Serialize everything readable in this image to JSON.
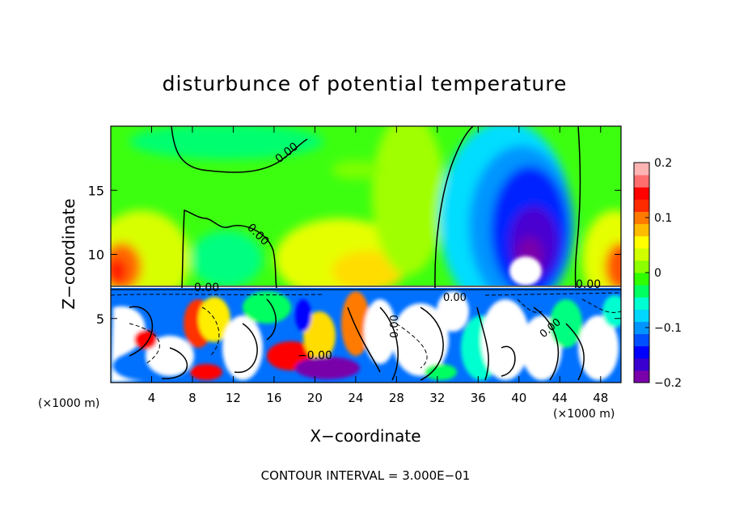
{
  "chart_data": {
    "type": "heatmap",
    "title": "disturbunce of potential temperature",
    "xlabel": "X−coordinate",
    "ylabel": "Z−coordinate",
    "x_unit_left": "(×1000 m)",
    "x_unit_right": "(×1000 m)",
    "xlim": [
      0,
      50
    ],
    "ylim": [
      0,
      20
    ],
    "x_ticks": [
      4,
      8,
      12,
      16,
      20,
      24,
      28,
      32,
      36,
      40,
      44,
      48
    ],
    "y_ticks": [
      5,
      10,
      15
    ],
    "footer": "CONTOUR INTERVAL = 3.000E−01",
    "contour_labels": [
      {
        "text": "0.00",
        "x": 17.5,
        "y": 18.0
      },
      {
        "text": "0.00",
        "x": 14.2,
        "y": 11.5
      },
      {
        "text": "0.00",
        "x": 9.5,
        "y": 7.3
      },
      {
        "text": "0.00",
        "x": 46.0,
        "y": 7.6
      },
      {
        "text": "0.00",
        "x": 34.5,
        "y": 6.8
      },
      {
        "text": "0.00",
        "x": 28.0,
        "y": 4.5
      },
      {
        "text": "0.00",
        "x": 43.0,
        "y": 4.0
      },
      {
        "text": "−0.00",
        "x": 20.5,
        "y": 2.1
      }
    ],
    "colorbar": {
      "min": -0.2,
      "max": 0.2,
      "ticks": [
        0.2,
        0.1,
        0,
        -0.1,
        -0.2
      ],
      "tick_labels": [
        "0.2",
        "0.1",
        "0",
        "−0.1",
        "−0.2"
      ],
      "colors": [
        "#7a00aa",
        "#3a00d0",
        "#0000ff",
        "#0050ff",
        "#0095ff",
        "#00d8ff",
        "#00ffd0",
        "#00ff60",
        "#30ff00",
        "#8cff00",
        "#d0ff00",
        "#ffff00",
        "#ffbb00",
        "#ff7a00",
        "#ff2a00",
        "#ff0000",
        "#ff6e6e",
        "#ffb4b4"
      ]
    },
    "layer_boundary_z": 7.3
  }
}
